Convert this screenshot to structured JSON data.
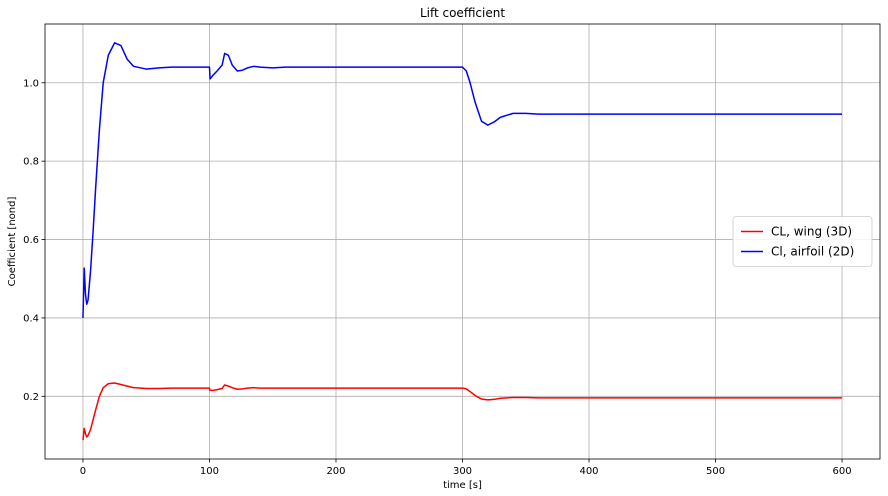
{
  "chart_data": {
    "type": "line",
    "title": "Lift coefficient",
    "xlabel": "time [s]",
    "ylabel": "Coefficient [nond]",
    "xlim": [
      -30,
      630
    ],
    "ylim": [
      0.04,
      1.15
    ],
    "xticks": [
      0,
      100,
      200,
      300,
      400,
      500,
      600
    ],
    "yticks": [
      0.2,
      0.4,
      0.6,
      0.8,
      1.0
    ],
    "xtick_labels": [
      "0",
      "100",
      "200",
      "300",
      "400",
      "500",
      "600"
    ],
    "ytick_labels": [
      "0.2",
      "0.4",
      "0.6",
      "0.8",
      "1.0"
    ],
    "grid": true,
    "legend_position": "center-right",
    "series": [
      {
        "name": "CL, wing (3D)",
        "color": "#ff0000",
        "x": [
          0,
          1,
          2,
          3,
          4,
          6,
          8,
          10,
          13,
          16,
          20,
          25,
          30,
          40,
          50,
          60,
          70,
          80,
          90,
          100,
          100.5,
          103,
          106,
          110,
          112,
          115,
          118,
          122,
          126,
          130,
          135,
          140,
          150,
          160,
          200,
          250,
          300,
          303,
          306,
          310,
          315,
          320,
          325,
          330,
          340,
          350,
          360,
          400,
          450,
          500,
          550,
          600
        ],
        "y": [
          0.088,
          0.118,
          0.105,
          0.096,
          0.1,
          0.115,
          0.14,
          0.165,
          0.2,
          0.222,
          0.232,
          0.234,
          0.23,
          0.222,
          0.22,
          0.22,
          0.221,
          0.221,
          0.221,
          0.221,
          0.215,
          0.215,
          0.217,
          0.22,
          0.229,
          0.226,
          0.222,
          0.218,
          0.219,
          0.221,
          0.222,
          0.221,
          0.221,
          0.221,
          0.221,
          0.221,
          0.221,
          0.219,
          0.212,
          0.202,
          0.193,
          0.191,
          0.192,
          0.195,
          0.197,
          0.197,
          0.196,
          0.196,
          0.196,
          0.196,
          0.196,
          0.196
        ]
      },
      {
        "name": "Cl, airfoil (2D)",
        "color": "#0000ff",
        "x": [
          0,
          1,
          2,
          3,
          4,
          6,
          8,
          10,
          13,
          16,
          20,
          25,
          30,
          35,
          40,
          50,
          60,
          70,
          80,
          90,
          100,
          100.5,
          103,
          106,
          110,
          112,
          115,
          118,
          122,
          126,
          130,
          135,
          140,
          150,
          160,
          200,
          250,
          300,
          303,
          306,
          310,
          315,
          320,
          325,
          330,
          340,
          350,
          360,
          400,
          450,
          500,
          550,
          600
        ],
        "y": [
          0.4,
          0.527,
          0.46,
          0.435,
          0.445,
          0.52,
          0.62,
          0.73,
          0.88,
          1.0,
          1.07,
          1.102,
          1.095,
          1.06,
          1.042,
          1.035,
          1.038,
          1.04,
          1.04,
          1.04,
          1.04,
          1.01,
          1.02,
          1.03,
          1.045,
          1.075,
          1.07,
          1.045,
          1.03,
          1.032,
          1.038,
          1.042,
          1.04,
          1.038,
          1.04,
          1.04,
          1.04,
          1.04,
          1.03,
          1.0,
          0.95,
          0.902,
          0.892,
          0.9,
          0.912,
          0.922,
          0.922,
          0.92,
          0.92,
          0.92,
          0.92,
          0.92,
          0.92
        ]
      }
    ]
  }
}
